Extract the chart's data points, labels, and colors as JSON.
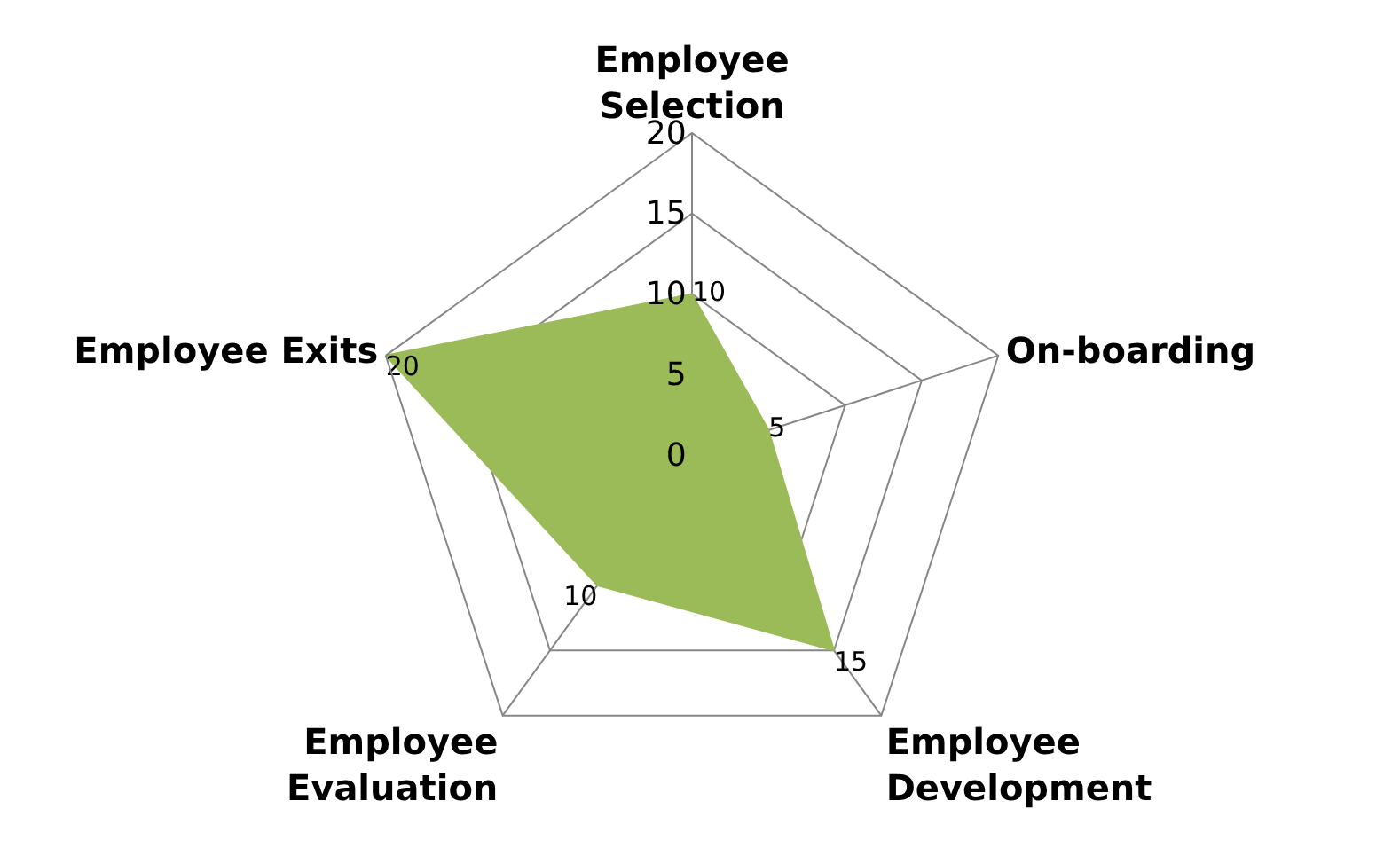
{
  "chart_data": {
    "type": "radar",
    "categories": [
      "Employee\nSelection",
      "On-boarding",
      "Employee\nDevelopment",
      "Employee\nEvaluation",
      "Employee Exits"
    ],
    "series": [
      {
        "color": "#9bbb59",
        "values": [
          10,
          5,
          15,
          10,
          20
        ]
      }
    ],
    "ylim": [
      0,
      20
    ],
    "yticks": [
      0,
      5,
      10,
      15,
      20
    ],
    "grid": true,
    "data_labels": true
  }
}
